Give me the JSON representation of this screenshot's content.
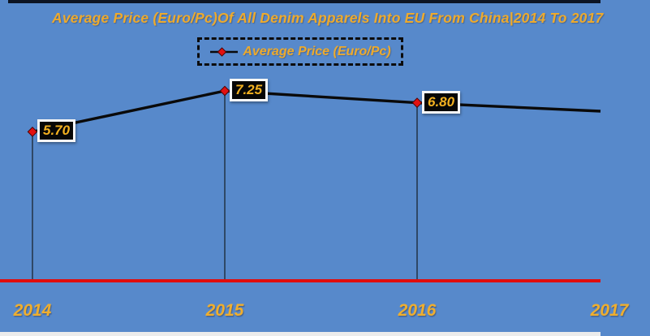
{
  "chart_data": {
    "type": "line",
    "title": "Average Price (Euro/Pc)Of All Denim Apparels Into EU From China|2014 To 2017",
    "legend_label": "Average Price (Euro/Pc)",
    "categories": [
      "2014",
      "2015",
      "2016",
      "2017"
    ],
    "series": [
      {
        "name": "Average Price (Euro/Pc)",
        "values": [
          5.7,
          7.25,
          6.8,
          null
        ]
      }
    ],
    "data_labels": [
      "5.70",
      "7.25",
      "6.80"
    ],
    "xlabel": "",
    "ylabel": "",
    "layout": {
      "legend_position": "top-center",
      "grid": false,
      "drop_lines": true,
      "fourth_point_clipped_at_right_edge": true
    },
    "colors": {
      "background": "#5789cb",
      "title_text": "#edaa2d",
      "year_label_text": "#efae2e",
      "data_label_text": "#f3b120",
      "data_label_box_bg": "#070707",
      "data_label_box_border": "#f8f8f8",
      "series_line": "#0a0a0a",
      "marker_fill": "#e21010",
      "marker_stroke": "#4a0404",
      "drop_line": "#223246",
      "axis_line": "#e00d0d",
      "legend_border": "#0c0c0c",
      "top_border": "#0c1423",
      "bottom_strip": "#ececec"
    }
  }
}
